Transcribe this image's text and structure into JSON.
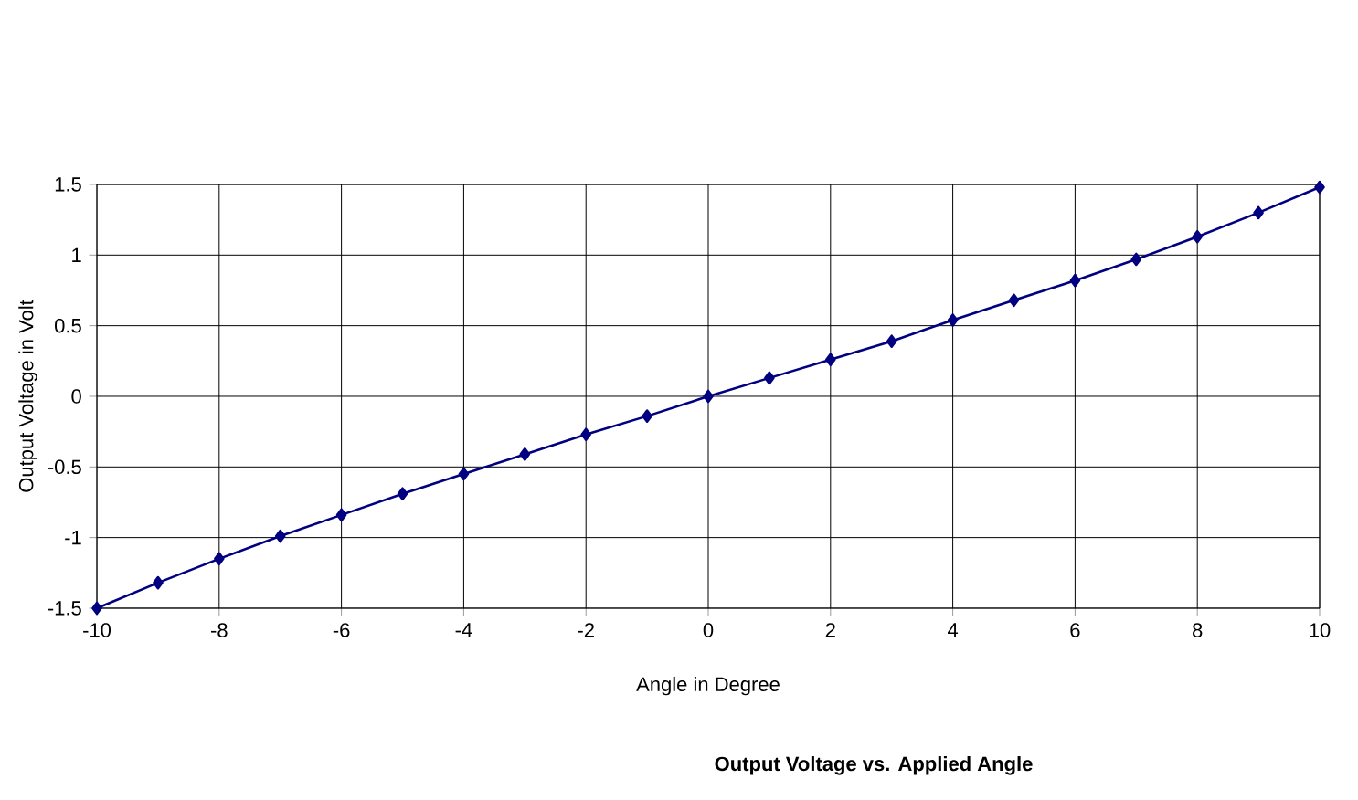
{
  "chart_data": {
    "type": "line",
    "title": "Output Voltage vs. Applied Angle",
    "xlabel": "Angle in Degree",
    "ylabel": "Output Voltage in Volt",
    "x": [
      -10,
      -9,
      -8,
      -7,
      -6,
      -5,
      -4,
      -3,
      -2,
      -1,
      0,
      1,
      2,
      3,
      4,
      5,
      6,
      7,
      8,
      9,
      10
    ],
    "series": [
      {
        "color": "#000080",
        "values": [
          -1.5,
          -1.32,
          -1.15,
          -0.99,
          -0.84,
          -0.69,
          -0.55,
          -0.41,
          -0.27,
          -0.14,
          0,
          0.13,
          0.26,
          0.39,
          0.54,
          0.68,
          0.82,
          0.97,
          1.13,
          1.3,
          1.48
        ]
      }
    ],
    "xlim": [
      -10,
      10
    ],
    "ylim": [
      -1.5,
      1.5
    ],
    "xticks": [
      -10,
      -8,
      -6,
      -4,
      -2,
      0,
      2,
      4,
      6,
      8,
      10
    ],
    "yticks": [
      -1.5,
      -1,
      -0.5,
      0,
      0.5,
      1,
      1.5
    ],
    "grid": true,
    "marker": "diamond",
    "line_style": "solid"
  }
}
